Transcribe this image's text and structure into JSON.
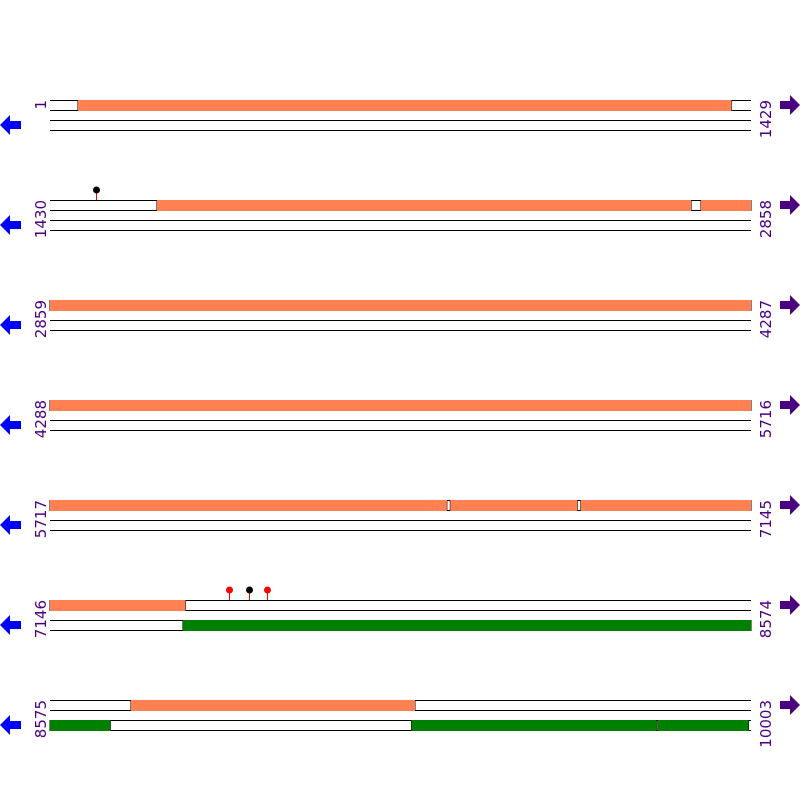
{
  "colors": {
    "forward_feature": "#ff8050",
    "reverse_feature": "#008000",
    "number_text": "#4b0082",
    "left_arrow": "#0000ff",
    "right_arrow": "#4b0082",
    "marker_red": "#ff0000",
    "marker_black": "#000000",
    "marker_stem": "#ff0000"
  },
  "icons": {
    "left": "arrow-left-icon",
    "right": "arrow-right-icon"
  },
  "rows": [
    {
      "start": "1",
      "end": "1429",
      "forward": [
        [
          58,
          1389
        ]
      ],
      "reverse": [],
      "markers": []
    },
    {
      "start": "1430",
      "end": "2858",
      "forward": [
        [
          1648,
          2736
        ],
        [
          2757,
          2858
        ]
      ],
      "reverse": [],
      "markers": [
        {
          "pos": 1524,
          "color": "black"
        }
      ]
    },
    {
      "start": "2859",
      "end": "4287",
      "forward": [
        [
          2859,
          4287
        ]
      ],
      "reverse": [],
      "markers": []
    },
    {
      "start": "4288",
      "end": "5716",
      "forward": [
        [
          4288,
          5716
        ]
      ],
      "reverse": [],
      "markers": []
    },
    {
      "start": "5717",
      "end": "7145",
      "forward": [
        [
          5717,
          6525
        ],
        [
          6533,
          6791
        ],
        [
          6799,
          7145
        ]
      ],
      "reverse": [],
      "markers": []
    },
    {
      "start": "7146",
      "end": "8574",
      "forward": [
        [
          7146,
          7421
        ]
      ],
      "reverse": [
        [
          7417,
          8574
        ]
      ],
      "markers": [
        {
          "pos": 7511,
          "color": "red"
        },
        {
          "pos": 7552,
          "color": "black"
        },
        {
          "pos": 7589,
          "color": "red"
        }
      ]
    },
    {
      "start": "8575",
      "end": "10003",
      "forward": [
        [
          8740,
          9318
        ]
      ],
      "reverse": [
        [
          8575,
          8697
        ],
        [
          9312,
          9810
        ],
        [
          9814,
          9998
        ]
      ],
      "markers": []
    }
  ]
}
